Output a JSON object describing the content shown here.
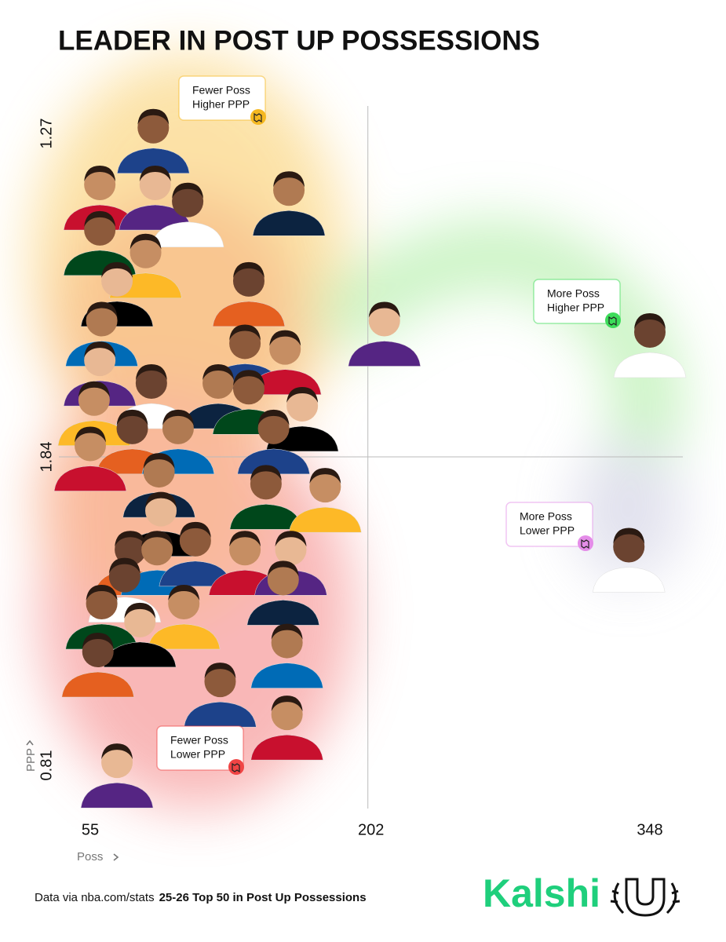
{
  "chart_data": {
    "type": "scatter",
    "title": "LEADER IN POST UP POSSESSIONS",
    "x_label": "Poss",
    "y_label": "PPP",
    "xlim": [
      55,
      348
    ],
    "xticks": [
      55,
      202,
      348
    ],
    "yticks": [
      1.27,
      1.84,
      0.81
    ],
    "quadrants": [
      [
        {
          "label": [
            "Fewer Poss",
            "Higher PPP"
          ],
          "color": "#f5b820",
          "x": [
            88,
            60,
            89,
            106,
            159,
            60,
            84,
            69,
            138,
            61,
            136,
            157,
            60,
            87,
            122,
            138,
            57,
            166,
            77,
            101,
            151,
            55
          ],
          "y": [
            1.26,
            1.36,
            1.36,
            1.39,
            1.37,
            1.44,
            1.48,
            1.53,
            1.53,
            1.6,
            1.64,
            1.65,
            1.67,
            1.71,
            1.71,
            1.72,
            1.74,
            1.75,
            1.79,
            1.79,
            1.79,
            1.82
          ]
        },
        {
          "label": [
            "More Poss",
            "Higher PPP"
          ],
          "color": "#3ddc5a",
          "x": [
            209,
            348
          ],
          "y": [
            1.6,
            1.62
          ]
        }
      ],
      [
        {
          "label": [
            "Fewer Poss",
            "Lower PPP"
          ],
          "color": "#f04444",
          "x": [
            91,
            147,
            178,
            92,
            76,
            90,
            110,
            136,
            160,
            73,
            156,
            61,
            104,
            81,
            59,
            158,
            123,
            158,
            69
          ],
          "y": [
            1.79,
            1.75,
            1.74,
            1.66,
            1.53,
            1.53,
            1.56,
            1.53,
            1.53,
            1.44,
            1.43,
            1.35,
            1.35,
            1.29,
            1.19,
            1.22,
            1.09,
            0.98,
            0.82
          ]
        },
        {
          "label": [
            "More Poss",
            "Lower PPP"
          ],
          "color": "#e48ce8",
          "x": [
            337
          ],
          "y": [
            1.54
          ]
        }
      ]
    ],
    "source": "Data via nba.com/stats",
    "source_bold": "25-26 Top 50 in Post Up Possessions",
    "brand": "Kalshi"
  }
}
